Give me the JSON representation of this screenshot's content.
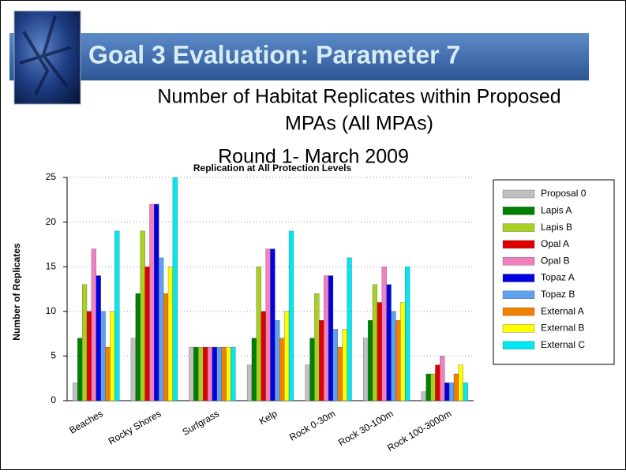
{
  "slide": {
    "title": "Goal 3 Evaluation: Parameter 7",
    "subtitle_lines": [
      "Number of Habitat Replicates within Proposed",
      "MPAs (All MPAs)",
      "Round 1- March 2009"
    ]
  },
  "chart_data": {
    "type": "bar",
    "title": "Replication at All Protection Levels",
    "y_label": "Number of Replicates",
    "categories": [
      "Beaches",
      "Rocky Shores",
      "Surfgrass",
      "Kelp",
      "Rock 0-30m",
      "Rock 30-100m",
      "Rock 100-3000m"
    ],
    "series": [
      {
        "name": "Proposal 0",
        "color": "#c0c0c0",
        "values": [
          2,
          7,
          6,
          4,
          4,
          7,
          1
        ]
      },
      {
        "name": "Lapis A",
        "color": "#008000",
        "values": [
          7,
          12,
          6,
          7,
          7,
          9,
          3
        ]
      },
      {
        "name": "Lapis B",
        "color": "#a8d020",
        "values": [
          13,
          19,
          6,
          15,
          12,
          13,
          3
        ]
      },
      {
        "name": "Opal A",
        "color": "#e00000",
        "values": [
          10,
          15,
          6,
          10,
          9,
          11,
          4
        ]
      },
      {
        "name": "Opal B",
        "color": "#f080c0",
        "values": [
          17,
          22,
          6,
          17,
          14,
          15,
          5
        ]
      },
      {
        "name": "Topaz A",
        "color": "#0000e0",
        "values": [
          14,
          22,
          6,
          17,
          14,
          13,
          2
        ]
      },
      {
        "name": "Topaz B",
        "color": "#60a0f0",
        "values": [
          10,
          16,
          6,
          9,
          8,
          10,
          2
        ]
      },
      {
        "name": "External A",
        "color": "#f08000",
        "values": [
          6,
          12,
          6,
          7,
          6,
          9,
          3
        ]
      },
      {
        "name": "External B",
        "color": "#ffff00",
        "values": [
          10,
          15,
          6,
          10,
          8,
          11,
          4
        ]
      },
      {
        "name": "External C",
        "color": "#00e8f0",
        "values": [
          19,
          25,
          6,
          19,
          16,
          15,
          2
        ]
      }
    ],
    "ylim": [
      0,
      25
    ],
    "yticks": [
      0,
      5,
      10,
      15,
      20,
      25
    ],
    "grid": true,
    "legend": "right"
  }
}
